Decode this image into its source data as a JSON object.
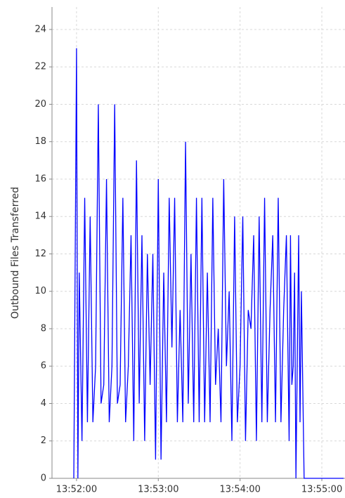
{
  "chart_data": {
    "type": "line",
    "y_label": "Outbound Files Transferred",
    "color": "#0000ff",
    "grid": true,
    "x": [
      "13:51:58",
      "13:52:00",
      "13:52:01",
      "13:52:02",
      "13:52:04",
      "13:52:06",
      "13:52:08",
      "13:52:10",
      "13:52:12",
      "13:52:14",
      "13:52:16",
      "13:52:18",
      "13:52:20",
      "13:52:22",
      "13:52:24",
      "13:52:26",
      "13:52:28",
      "13:52:30",
      "13:52:32",
      "13:52:34",
      "13:52:36",
      "13:52:38",
      "13:52:40",
      "13:52:42",
      "13:52:44",
      "13:52:46",
      "13:52:48",
      "13:52:50",
      "13:52:52",
      "13:52:54",
      "13:52:56",
      "13:52:58",
      "13:53:00",
      "13:53:02",
      "13:53:04",
      "13:53:06",
      "13:53:08",
      "13:53:10",
      "13:53:12",
      "13:53:14",
      "13:53:16",
      "13:53:18",
      "13:53:20",
      "13:53:22",
      "13:53:24",
      "13:53:26",
      "13:53:28",
      "13:53:30",
      "13:53:32",
      "13:53:34",
      "13:53:36",
      "13:53:38",
      "13:53:40",
      "13:53:42",
      "13:53:44",
      "13:53:46",
      "13:53:48",
      "13:53:50",
      "13:53:52",
      "13:53:54",
      "13:53:56",
      "13:53:58",
      "13:54:00",
      "13:54:02",
      "13:54:04",
      "13:54:06",
      "13:54:08",
      "13:54:10",
      "13:54:12",
      "13:54:14",
      "13:54:16",
      "13:54:18",
      "13:54:20",
      "13:54:22",
      "13:54:24",
      "13:54:26",
      "13:54:28",
      "13:54:30",
      "13:54:32",
      "13:54:34",
      "13:54:36",
      "13:54:37",
      "13:54:38",
      "13:54:39",
      "13:54:40",
      "13:54:41",
      "13:54:43",
      "13:54:44",
      "13:54:45",
      "13:54:47",
      "13:55:16"
    ],
    "values": [
      0,
      23,
      0,
      11,
      2,
      15,
      3,
      14,
      3,
      6,
      20,
      4,
      5,
      16,
      3,
      6,
      20,
      4,
      5,
      15,
      3,
      6,
      13,
      2,
      17,
      4,
      13,
      2,
      12,
      5,
      12,
      1,
      16,
      1,
      11,
      3,
      15,
      7,
      15,
      3,
      9,
      3,
      18,
      4,
      12,
      3,
      15,
      3,
      15,
      3,
      11,
      3,
      15,
      5,
      8,
      3,
      16,
      6,
      10,
      2,
      14,
      3,
      6,
      14,
      2,
      9,
      8,
      13,
      2,
      14,
      3,
      15,
      3,
      9,
      13,
      3,
      15,
      3,
      9,
      13,
      2,
      13,
      5,
      6,
      11,
      0,
      13,
      3,
      10,
      0,
      0
    ],
    "xlim": [
      "13:51:42",
      "13:55:17"
    ],
    "xticks": [
      "13:52:00",
      "13:53:00",
      "13:54:00",
      "13:55:00"
    ],
    "ylim": [
      0,
      25.2
    ],
    "yticks": [
      0,
      2,
      4,
      6,
      8,
      10,
      12,
      14,
      16,
      18,
      20,
      22,
      24
    ]
  }
}
